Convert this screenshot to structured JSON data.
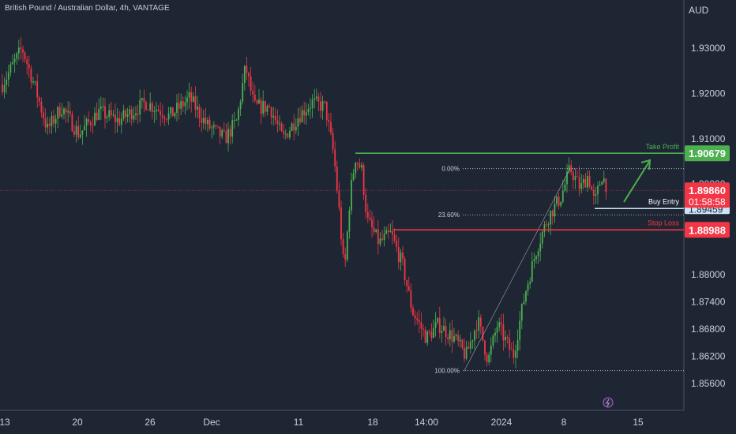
{
  "header": {
    "title": "British Pound / Australian Dollar, 4h, VANTAGE",
    "currency": "AUD"
  },
  "chart_data": {
    "type": "candlestick",
    "y_ticks": [
      "1.93000",
      "1.92000",
      "1.91000",
      "1.90000",
      "1.89000",
      "1.88000",
      "1.87400",
      "1.86800",
      "1.86200",
      "1.85600"
    ],
    "y_tick_values": [
      1.93,
      1.92,
      1.91,
      1.9,
      1.89,
      1.88,
      1.874,
      1.868,
      1.862,
      1.856
    ],
    "x_ticks": [
      "13",
      "20",
      "26",
      "Dec",
      "11",
      "18",
      "14:00",
      "2024",
      "8",
      "15"
    ],
    "levels": {
      "take_profit": {
        "label": "Take Profit",
        "value": 1.90679,
        "display": "1.90679",
        "color": "#4caf50"
      },
      "buy_entry": {
        "label": "Buy Entry",
        "value": 1.89459,
        "display": "1.89459",
        "color": "#cfe3f7"
      },
      "stop_loss": {
        "label": "Stop Loss",
        "value": 1.88988,
        "display": "1.88988",
        "color": "#f23645"
      },
      "current": {
        "value": 1.8986,
        "display": "1.89860",
        "countdown": "01:58:58",
        "color": "#f23645"
      }
    },
    "fib_levels": [
      {
        "label": "0.00%",
        "value": 1.9034
      },
      {
        "label": "23.60%",
        "value": 1.8932
      },
      {
        "label": "100.00%",
        "value": 1.8588
      }
    ],
    "colors": {
      "up": "#4caf50",
      "down": "#f23645",
      "background": "#1e2634"
    }
  }
}
